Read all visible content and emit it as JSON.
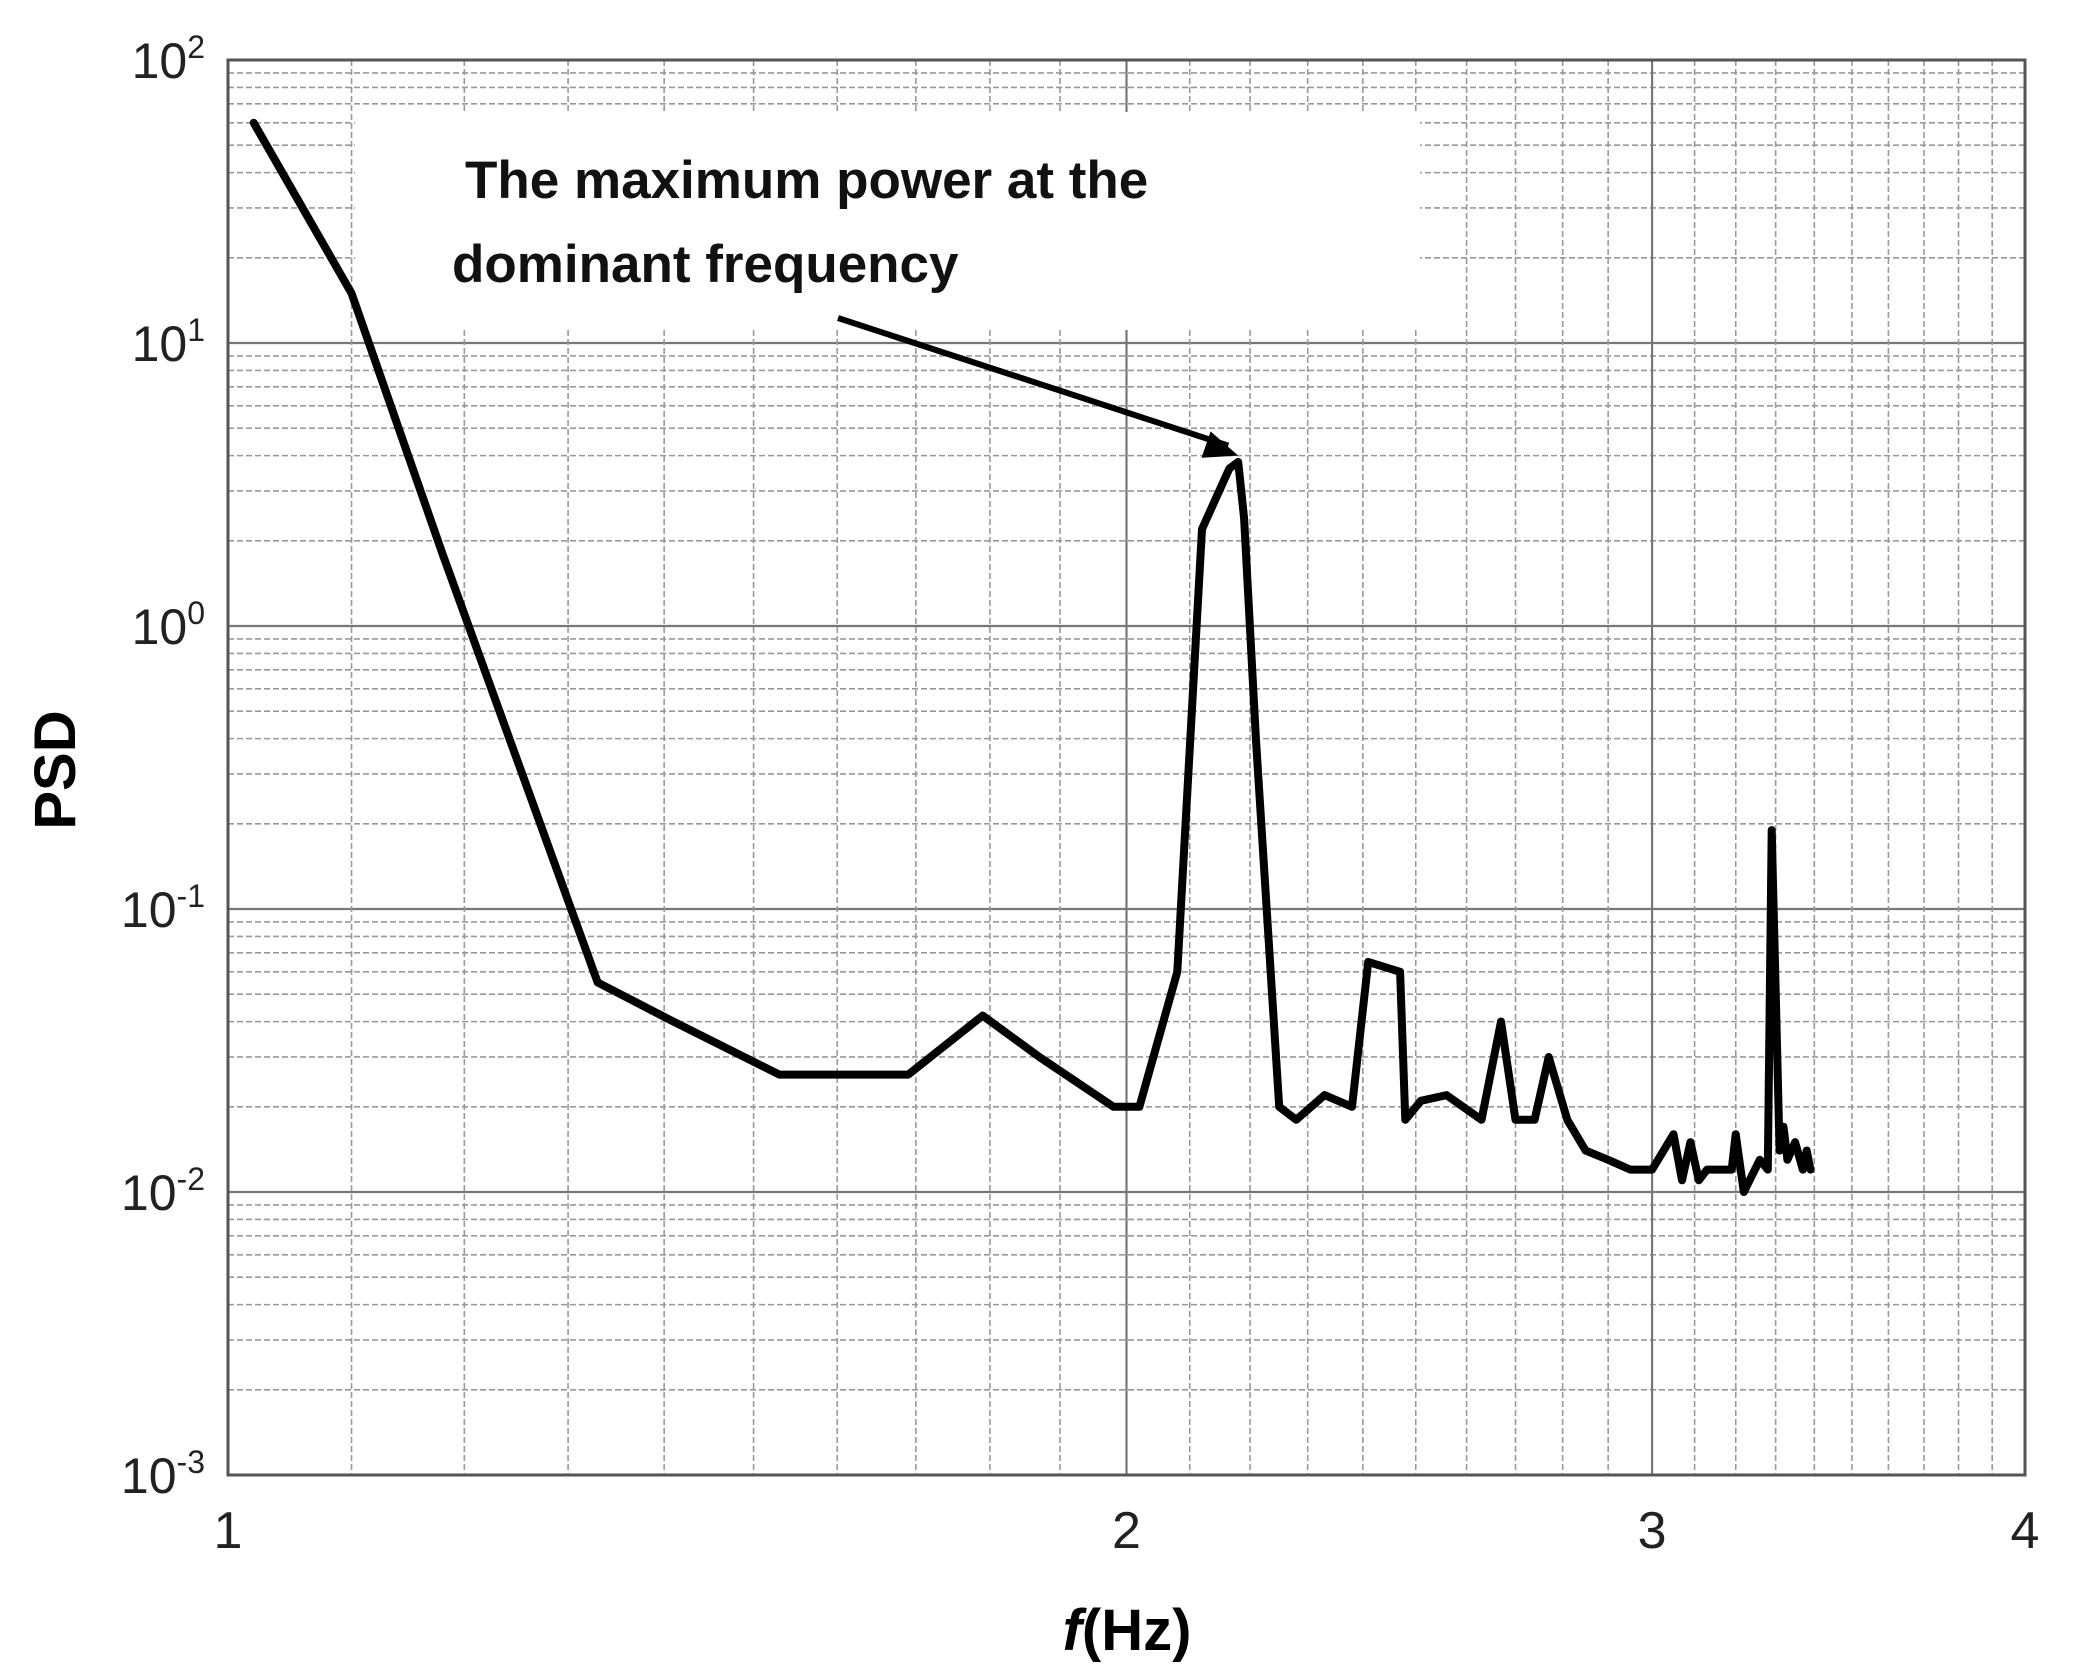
{
  "chart_data": {
    "type": "line",
    "title": "",
    "xlabel": {
      "italic": "f",
      "rest": "(Hz)"
    },
    "ylabel": "PSD",
    "xlim": [
      1,
      4
    ],
    "ylim": [
      0.001,
      100
    ],
    "yscale": "log",
    "xscale": "log",
    "grid": true,
    "x_ticks": [
      {
        "value": 1,
        "label": "1"
      },
      {
        "value": 2,
        "label": "2"
      },
      {
        "value": 3,
        "label": "3"
      },
      {
        "value": 4,
        "label": "4"
      }
    ],
    "y_ticks": [
      {
        "value": 100,
        "base": "10",
        "exp": "2"
      },
      {
        "value": 10,
        "base": "10",
        "exp": "1"
      },
      {
        "value": 1,
        "base": "10",
        "exp": "0"
      },
      {
        "value": 0.1,
        "base": "10",
        "exp": "-1"
      },
      {
        "value": 0.01,
        "base": "10",
        "exp": "-2"
      },
      {
        "value": 0.001,
        "base": "10",
        "exp": "-3"
      }
    ],
    "annotation": {
      "lines": [
        "The maximum power at the",
        "dominant frequency"
      ],
      "arrow_to": {
        "x": 2.18,
        "y": 4.0
      }
    },
    "series": [
      {
        "color": "#000000",
        "x": [
          1.02,
          1.1,
          1.18,
          1.33,
          1.41,
          1.53,
          1.69,
          1.79,
          1.87,
          1.98,
          2.02,
          2.08,
          2.12,
          2.165,
          2.18,
          2.19,
          2.21,
          2.25,
          2.28,
          2.33,
          2.38,
          2.41,
          2.47,
          2.48,
          2.51,
          2.56,
          2.63,
          2.67,
          2.7,
          2.74,
          2.77,
          2.81,
          2.85,
          2.9,
          2.95,
          3.0,
          3.05,
          3.07,
          3.09,
          3.11,
          3.13,
          3.15,
          3.19,
          3.2,
          3.22,
          3.26,
          3.28,
          3.29,
          3.31,
          3.32,
          3.33,
          3.35,
          3.37,
          3.38,
          3.39
        ],
        "y": [
          60,
          15,
          1.8,
          0.055,
          0.04,
          0.026,
          0.026,
          0.042,
          0.03,
          0.02,
          0.02,
          0.06,
          2.2,
          3.6,
          3.8,
          2.4,
          0.4,
          0.02,
          0.018,
          0.022,
          0.02,
          0.065,
          0.06,
          0.018,
          0.021,
          0.022,
          0.018,
          0.04,
          0.018,
          0.018,
          0.03,
          0.018,
          0.014,
          0.013,
          0.012,
          0.012,
          0.016,
          0.011,
          0.015,
          0.011,
          0.012,
          0.012,
          0.012,
          0.016,
          0.01,
          0.013,
          0.012,
          0.19,
          0.014,
          0.017,
          0.013,
          0.015,
          0.012,
          0.014,
          0.012
        ]
      }
    ]
  }
}
